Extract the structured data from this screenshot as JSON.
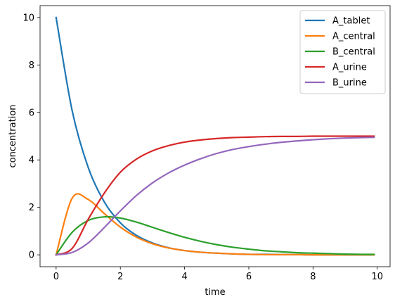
{
  "chart_data": {
    "type": "line",
    "title": "",
    "xlabel": "time",
    "ylabel": "concentration",
    "xlim": [
      -0.5,
      10.4
    ],
    "ylim": [
      -0.5,
      10.5
    ],
    "xticks": [
      0,
      2,
      4,
      6,
      8,
      10
    ],
    "yticks": [
      0,
      2,
      4,
      6,
      8,
      10
    ],
    "grid": false,
    "legend_position": "top-right",
    "x": [
      0,
      0.5,
      1,
      1.5,
      2,
      2.5,
      3,
      3.5,
      4,
      4.5,
      5,
      5.5,
      6,
      6.5,
      7,
      7.5,
      8,
      8.5,
      9,
      9.5,
      9.9
    ],
    "series": [
      {
        "name": "A_tablet",
        "color": "#1f77b4",
        "values": [
          10.0,
          6.07,
          3.68,
          2.23,
          1.35,
          0.82,
          0.5,
          0.3,
          0.18,
          0.11,
          0.07,
          0.04,
          0.02,
          0.02,
          0.01,
          0.01,
          0.0,
          0.0,
          0.0,
          0.0,
          0.0
        ]
      },
      {
        "name": "A_central",
        "color": "#ff7f0e",
        "values": [
          0.0,
          2.39,
          2.33,
          1.74,
          1.17,
          0.75,
          0.47,
          0.29,
          0.18,
          0.11,
          0.07,
          0.04,
          0.02,
          0.01,
          0.01,
          0.01,
          0.0,
          0.0,
          0.0,
          0.0,
          0.0
        ]
      },
      {
        "name": "B_central",
        "color": "#2ca02c",
        "values": [
          0.0,
          0.95,
          1.45,
          1.6,
          1.55,
          1.38,
          1.16,
          0.94,
          0.74,
          0.57,
          0.43,
          0.32,
          0.24,
          0.17,
          0.13,
          0.09,
          0.07,
          0.05,
          0.03,
          0.02,
          0.02
        ]
      },
      {
        "name": "A_urine",
        "color": "#d62728",
        "values": [
          0.0,
          0.27,
          1.5,
          2.6,
          3.48,
          4.03,
          4.38,
          4.6,
          4.75,
          4.84,
          4.9,
          4.94,
          4.96,
          4.98,
          4.99,
          4.99,
          5.0,
          5.0,
          5.0,
          5.0,
          5.0
        ]
      },
      {
        "name": "B_urine",
        "color": "#9467bd",
        "values": [
          0.0,
          0.1,
          0.5,
          1.15,
          1.85,
          2.5,
          3.03,
          3.45,
          3.78,
          4.05,
          4.27,
          4.44,
          4.56,
          4.66,
          4.74,
          4.8,
          4.85,
          4.89,
          4.92,
          4.94,
          4.95
        ]
      }
    ]
  }
}
